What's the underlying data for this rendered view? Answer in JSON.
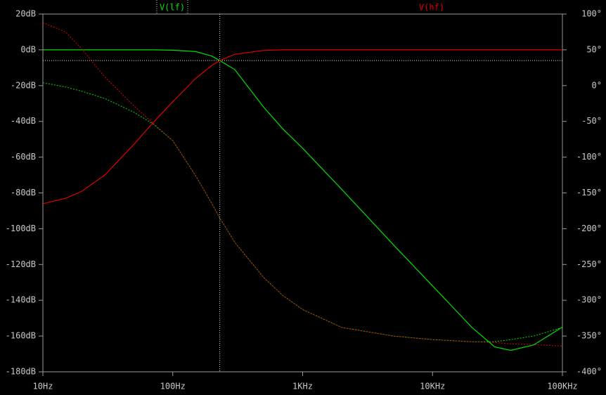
{
  "chart_data": {
    "type": "line",
    "log_x": true,
    "grid": false,
    "x": [
      10,
      15,
      20,
      30,
      50,
      70,
      100,
      150,
      200,
      230,
      300,
      500,
      700,
      1000,
      2000,
      5000,
      10000,
      20000,
      30000,
      40000,
      60000,
      100000
    ],
    "series": [
      {
        "name": "V(lf)",
        "color": "#00e000",
        "values": [
          0,
          0,
          0,
          0,
          0,
          0,
          -0.2,
          -1,
          -3.5,
          -6,
          -11,
          -32,
          -44,
          -55,
          -78,
          -109,
          -132,
          -155,
          -166,
          -168,
          -165,
          -155
        ],
        "phase": [
          4,
          -2,
          -8,
          -18,
          -37,
          -53,
          -77,
          -126,
          -165,
          -185,
          -219,
          -268,
          -293,
          -313,
          -338,
          -350,
          -355,
          -358,
          -358,
          -355,
          -350,
          -338
        ]
      },
      {
        "name": "V(hf)",
        "color": "#e00000",
        "values": [
          -86,
          -83,
          -79,
          -70,
          -53,
          -41,
          -29,
          -16,
          -8.7,
          -6,
          -2.5,
          -0.3,
          0,
          0,
          0,
          0,
          0,
          0,
          0,
          0,
          0,
          0
        ],
        "phase": [
          88,
          75,
          51,
          12,
          -28,
          -52,
          -77,
          -126,
          -165,
          -185,
          -219,
          -268,
          -293,
          -313,
          -338,
          -350,
          -355,
          -358,
          -359,
          -361,
          -362,
          -364
        ]
      }
    ],
    "xlim": [
      10,
      100000
    ],
    "xticks": [
      {
        "value": 10,
        "label": "10Hz"
      },
      {
        "value": 100,
        "label": "100Hz"
      },
      {
        "value": 1000,
        "label": "1KHz"
      },
      {
        "value": 10000,
        "label": "10KHz"
      },
      {
        "value": 100000,
        "label": "100KHz"
      }
    ],
    "ylim": [
      -180,
      20
    ],
    "yticks": [
      {
        "value": 20,
        "label": "20dB"
      },
      {
        "value": 0,
        "label": "0dB"
      },
      {
        "value": -20,
        "label": "-20dB"
      },
      {
        "value": -40,
        "label": "-40dB"
      },
      {
        "value": -60,
        "label": "-60dB"
      },
      {
        "value": -80,
        "label": "-80dB"
      },
      {
        "value": -100,
        "label": "-100dB"
      },
      {
        "value": -120,
        "label": "-120dB"
      },
      {
        "value": -140,
        "label": "-140dB"
      },
      {
        "value": -160,
        "label": "-160dB"
      },
      {
        "value": -180,
        "label": "-180dB"
      }
    ],
    "y2lim": [
      -400,
      100
    ],
    "y2ticks": [
      {
        "value": 100,
        "label": "100°"
      },
      {
        "value": 50,
        "label": "50°"
      },
      {
        "value": 0,
        "label": "0°"
      },
      {
        "value": -50,
        "label": "-50°"
      },
      {
        "value": -100,
        "label": "-100°"
      },
      {
        "value": -150,
        "label": "-150°"
      },
      {
        "value": -200,
        "label": "-200°"
      },
      {
        "value": -250,
        "label": "-250°"
      },
      {
        "value": -300,
        "label": "-300°"
      },
      {
        "value": -350,
        "label": "-350°"
      },
      {
        "value": -400,
        "label": "-400°"
      }
    ],
    "cursor": {
      "x": 230,
      "y": -6
    }
  }
}
